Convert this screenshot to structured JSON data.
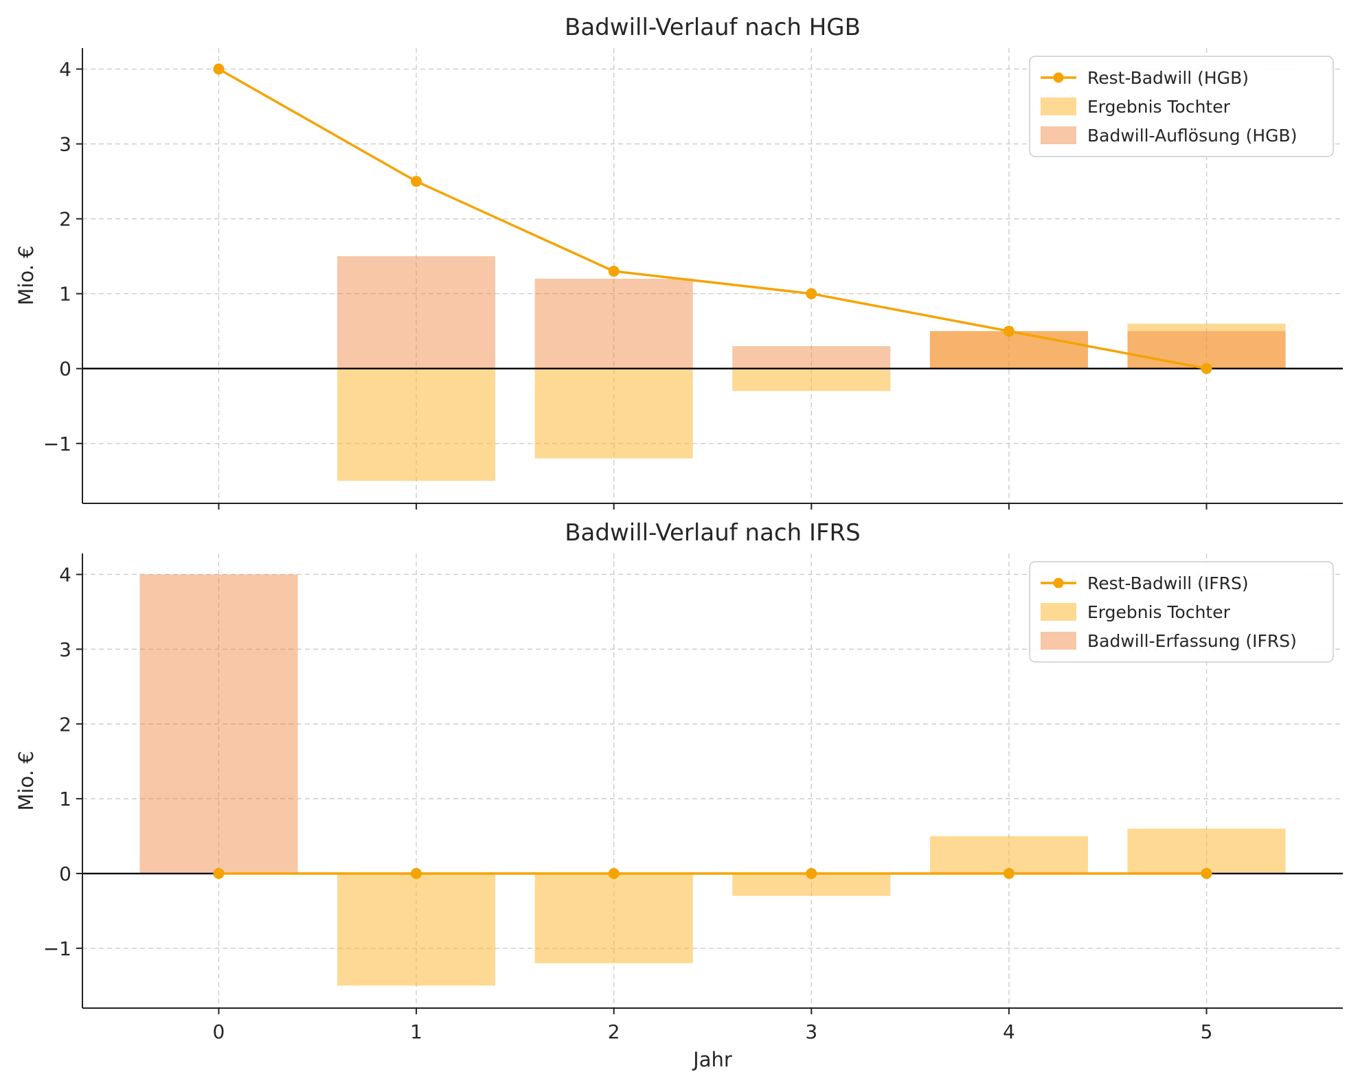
{
  "chart_data": [
    {
      "type": "bar+line",
      "title": "Badwill-Verlauf nach HGB",
      "ylabel": "Mio. €",
      "xlabel": "",
      "x": [
        0,
        1,
        2,
        3,
        4,
        5
      ],
      "xticks": [
        0,
        1,
        2,
        3,
        4,
        5
      ],
      "yticks": [
        -1,
        0,
        1,
        2,
        3,
        4
      ],
      "xlim": [
        -0.69,
        5.69
      ],
      "ylim": [
        -1.8,
        4.28
      ],
      "grid": true,
      "legend_position": "upper right",
      "series": [
        {
          "name": "Ergebnis Tochter",
          "type": "bar",
          "color": "rgba(252,180,40,0.5)",
          "values": [
            0,
            -1.5,
            -1.2,
            -0.3,
            0.5,
            0.6
          ]
        },
        {
          "name": "Badwill-Auflösung (HGB)",
          "type": "bar",
          "color": "rgba(240,130,60,0.45)",
          "values": [
            0,
            1.5,
            1.2,
            0.3,
            0.5,
            0.5
          ]
        },
        {
          "name": "Rest-Badwill (HGB)",
          "type": "line",
          "color": "#f5a302",
          "values": [
            4,
            2.5,
            1.3,
            1.0,
            0.5,
            0
          ]
        }
      ],
      "legend": [
        {
          "label": "Rest-Badwill (HGB)",
          "swatch": "line",
          "color": "#f5a302"
        },
        {
          "label": "Ergebnis Tochter",
          "swatch": "patch",
          "color": "rgba(252,180,40,0.5)"
        },
        {
          "label": "Badwill-Auflösung (HGB)",
          "swatch": "patch",
          "color": "rgba(240,130,60,0.45)"
        }
      ]
    },
    {
      "type": "bar+line",
      "title": "Badwill-Verlauf nach IFRS",
      "ylabel": "Mio. €",
      "xlabel": "Jahr",
      "x": [
        0,
        1,
        2,
        3,
        4,
        5
      ],
      "xticks": [
        0,
        1,
        2,
        3,
        4,
        5
      ],
      "yticks": [
        -1,
        0,
        1,
        2,
        3,
        4
      ],
      "xlim": [
        -0.69,
        5.69
      ],
      "ylim": [
        -1.8,
        4.28
      ],
      "grid": true,
      "legend_position": "upper right",
      "series": [
        {
          "name": "Ergebnis Tochter",
          "type": "bar",
          "color": "rgba(252,180,40,0.5)",
          "values": [
            0,
            -1.5,
            -1.2,
            -0.3,
            0.5,
            0.6
          ]
        },
        {
          "name": "Badwill-Erfassung (IFRS)",
          "type": "bar",
          "color": "rgba(240,130,60,0.45)",
          "values": [
            4,
            0,
            0,
            0,
            0,
            0
          ]
        },
        {
          "name": "Rest-Badwill (IFRS)",
          "type": "line",
          "color": "#f5a302",
          "values": [
            0,
            0,
            0,
            0,
            0,
            0
          ]
        }
      ],
      "legend": [
        {
          "label": "Rest-Badwill (IFRS)",
          "swatch": "line",
          "color": "#f5a302"
        },
        {
          "label": "Ergebnis Tochter",
          "swatch": "patch",
          "color": "rgba(252,180,40,0.5)"
        },
        {
          "label": "Badwill-Erfassung (IFRS)",
          "swatch": "patch",
          "color": "rgba(240,130,60,0.45)"
        }
      ]
    }
  ]
}
